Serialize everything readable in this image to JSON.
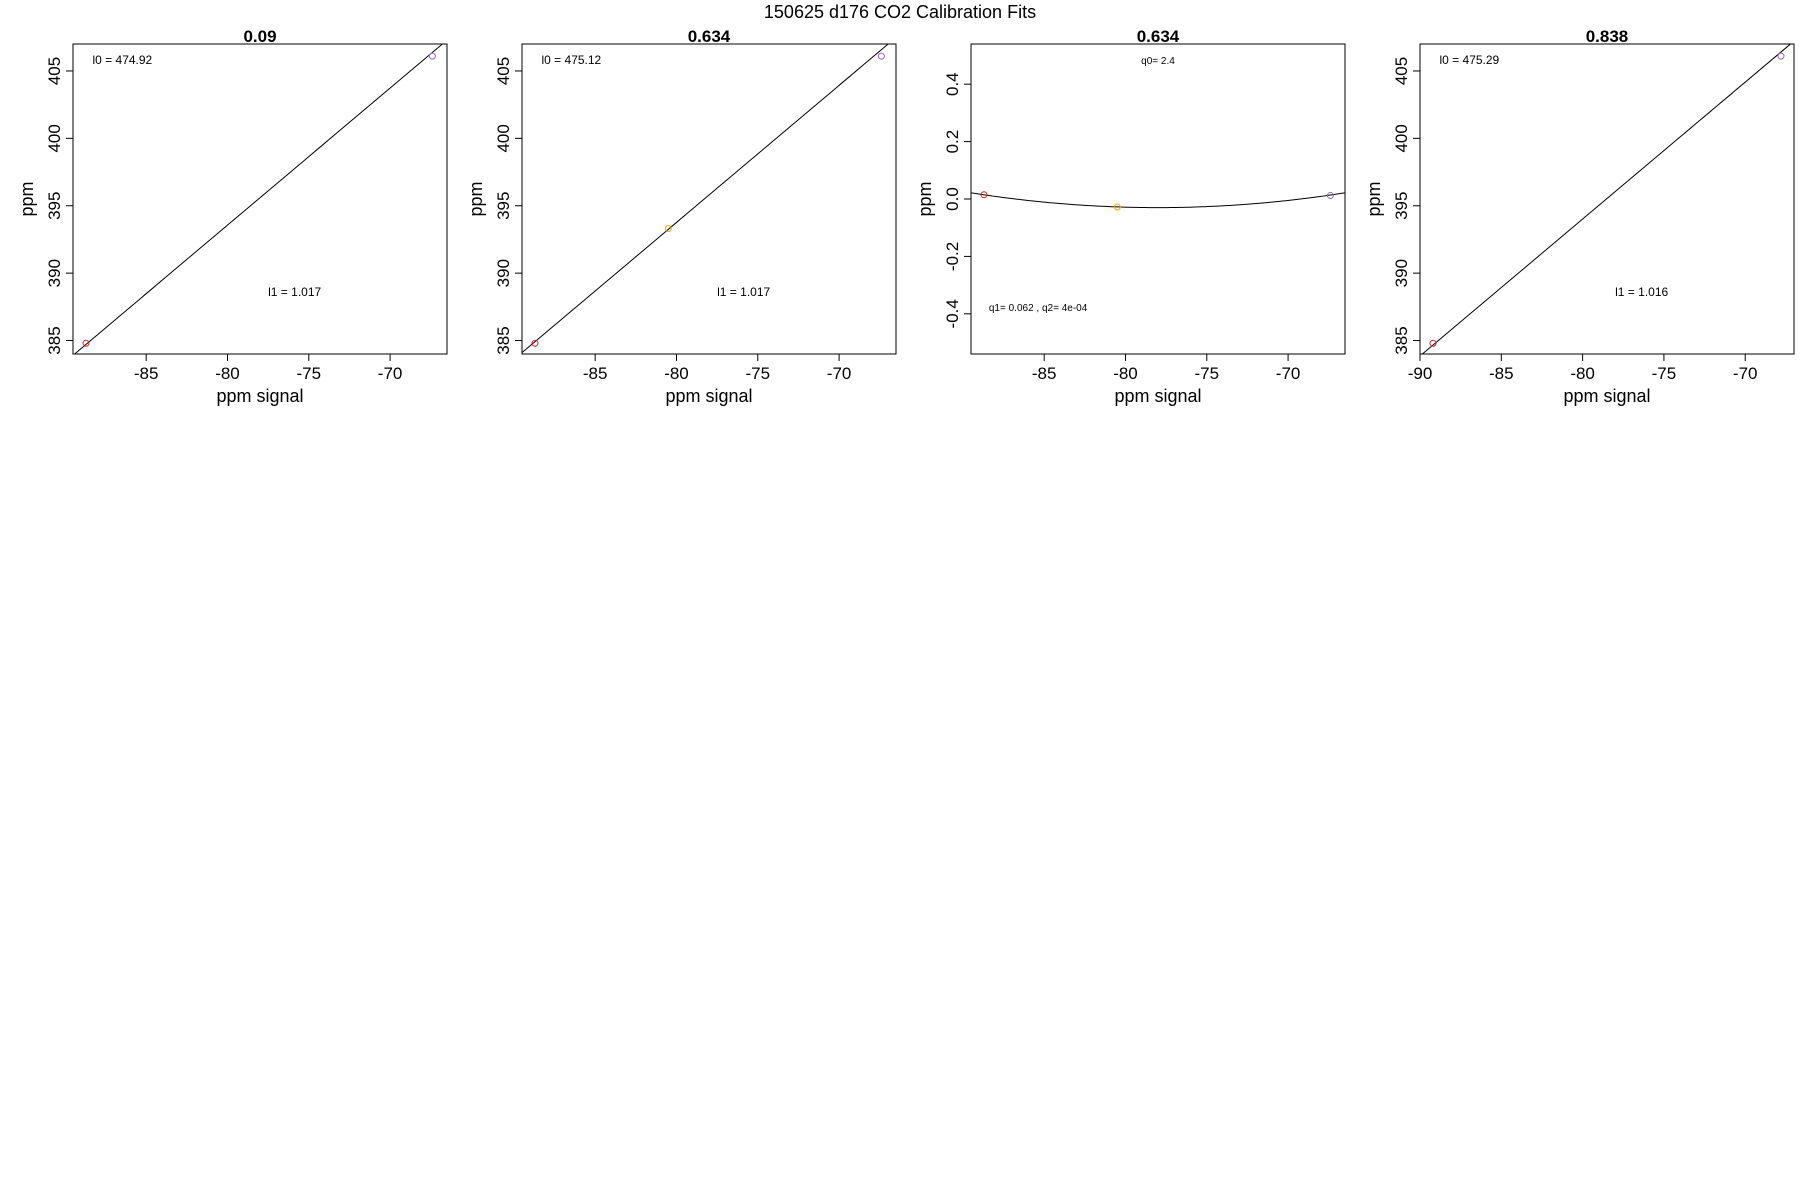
{
  "figure": {
    "title": "150625   d176   CO2 Calibration Fits"
  },
  "chart_data": [
    {
      "type": "scatter",
      "title": "0.09",
      "xlabel": "ppm signal",
      "ylabel": "ppm",
      "xlim": [
        -89.5,
        -66.5
      ],
      "ylim": [
        384.0,
        407.0
      ],
      "xticks": [
        -85,
        -80,
        -75,
        -70
      ],
      "yticks": [
        385,
        390,
        395,
        400,
        405
      ],
      "points": [
        {
          "x": -88.7,
          "y": 384.8,
          "color": "#d62728"
        },
        {
          "x": -67.4,
          "y": 406.1,
          "color": "#9467bd"
        }
      ],
      "fit": {
        "kind": "linear",
        "intercept": 474.92,
        "slope": 1.017
      },
      "annotations": [
        {
          "text": "l0 =  474.92",
          "x": -88.3,
          "y": 405.5
        },
        {
          "text": "l1 =  1.017",
          "x": -77.5,
          "y": 388.3
        }
      ]
    },
    {
      "type": "scatter",
      "title": "0.634",
      "xlabel": "ppm signal",
      "ylabel": "ppm",
      "xlim": [
        -89.5,
        -66.5
      ],
      "ylim": [
        384.0,
        407.0
      ],
      "xticks": [
        -85,
        -80,
        -75,
        -70
      ],
      "yticks": [
        385,
        390,
        395,
        400,
        405
      ],
      "points": [
        {
          "x": -88.7,
          "y": 384.8,
          "color": "#d62728"
        },
        {
          "x": -80.5,
          "y": 393.3,
          "color": "#e6a817"
        },
        {
          "x": -67.4,
          "y": 406.1,
          "color": "#9467bd"
        }
      ],
      "fit": {
        "kind": "linear",
        "intercept": 475.12,
        "slope": 1.017
      },
      "annotations": [
        {
          "text": "l0 =  475.12",
          "x": -88.3,
          "y": 405.5
        },
        {
          "text": "l1 =  1.017",
          "x": -77.5,
          "y": 388.3
        }
      ]
    },
    {
      "type": "scatter",
      "title": "0.634",
      "xlabel": "ppm signal",
      "ylabel": "ppm",
      "xlim": [
        -89.5,
        -66.5
      ],
      "ylim": [
        -0.54,
        0.54
      ],
      "xticks": [
        -85,
        -80,
        -75,
        -70
      ],
      "yticks": [
        -0.4,
        -0.2,
        0.0,
        0.2,
        0.4
      ],
      "ytick_labels": [
        "-0.4",
        "-0.2",
        "0.0",
        "0.2",
        "0.4"
      ],
      "points": [
        {
          "x": -88.7,
          "y": 0.015,
          "color": "#d62728"
        },
        {
          "x": -80.5,
          "y": -0.028,
          "color": "#e6a817"
        },
        {
          "x": -67.4,
          "y": 0.012,
          "color": "#9467bd"
        }
      ],
      "fit": {
        "kind": "quadratic",
        "vertex_x": -78.0,
        "vertex_y": -0.03,
        "a": 0.00039
      },
      "annotations": [
        {
          "text": "q0= 2.4",
          "x": -78.0,
          "y": 0.47
        },
        {
          "text": "q1= 0.062 , q2= 4e-04",
          "x": -88.4,
          "y": -0.39
        }
      ]
    },
    {
      "type": "scatter",
      "title": "0.838",
      "xlabel": "ppm signal",
      "ylabel": "ppm",
      "xlim": [
        -90.0,
        -67.0
      ],
      "ylim": [
        384.0,
        407.0
      ],
      "xticks": [
        -90,
        -85,
        -80,
        -75,
        -70
      ],
      "yticks": [
        385,
        390,
        395,
        400,
        405
      ],
      "points": [
        {
          "x": -89.2,
          "y": 384.8,
          "color": "#d62728"
        },
        {
          "x": -67.8,
          "y": 406.1,
          "color": "#9467bd"
        }
      ],
      "fit": {
        "kind": "linear",
        "intercept": 475.29,
        "slope": 1.016
      },
      "annotations": [
        {
          "text": "l0 =  475.29",
          "x": -88.8,
          "y": 405.5
        },
        {
          "text": "l1 =  1.016",
          "x": -78.0,
          "y": 388.3
        }
      ]
    }
  ]
}
